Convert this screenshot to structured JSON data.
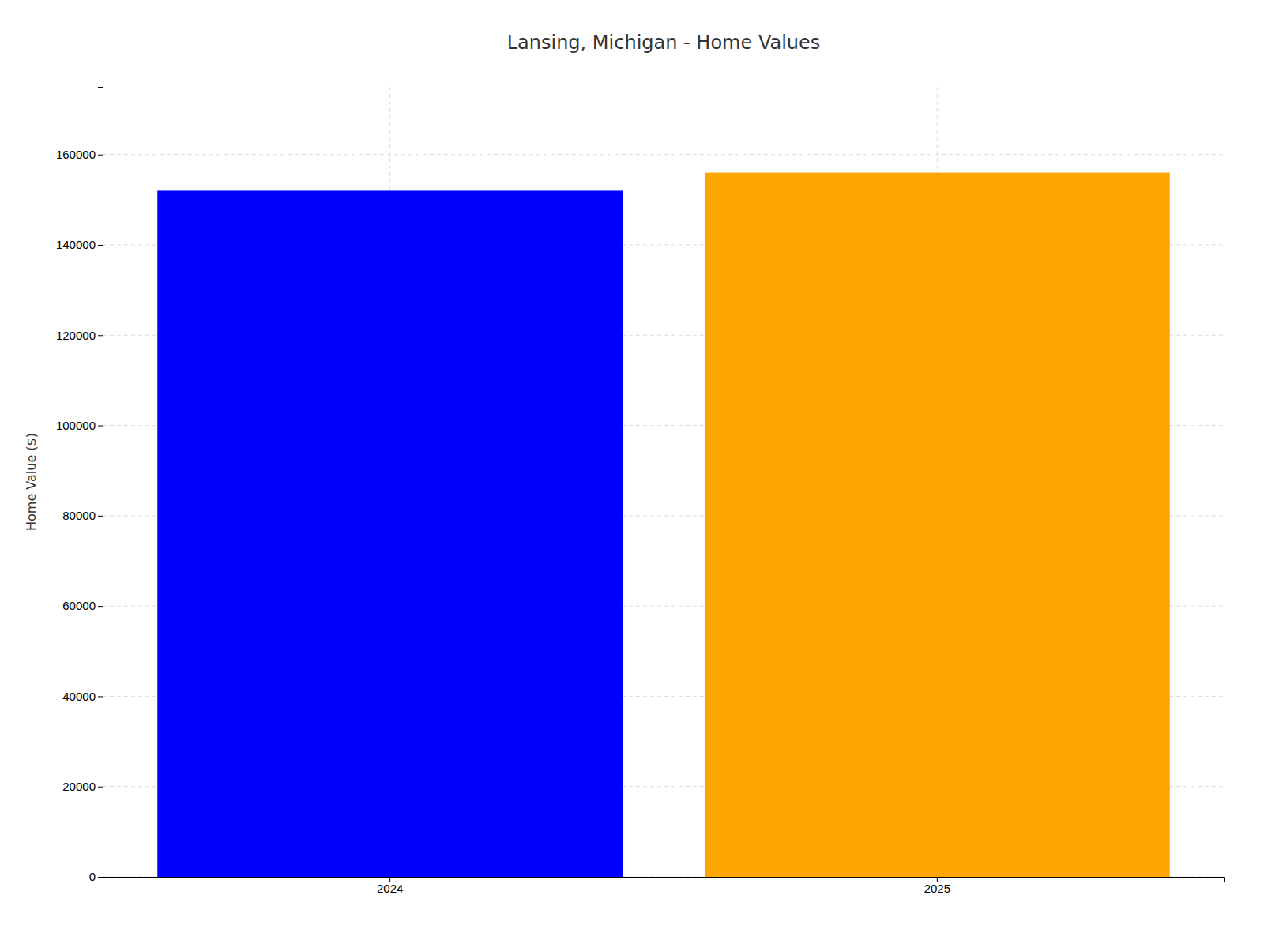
{
  "chart_data": {
    "type": "bar",
    "title": "Lansing, Michigan - Home Values",
    "ylabel": "Home Value ($)",
    "categories": [
      "2024",
      "2025"
    ],
    "values": [
      152000,
      156000
    ],
    "colors": [
      "#0000ff",
      "#ffa500"
    ],
    "ylim": [
      0,
      175000
    ],
    "yticks": [
      0,
      20000,
      40000,
      60000,
      80000,
      100000,
      120000,
      140000,
      160000
    ],
    "grid": true
  }
}
